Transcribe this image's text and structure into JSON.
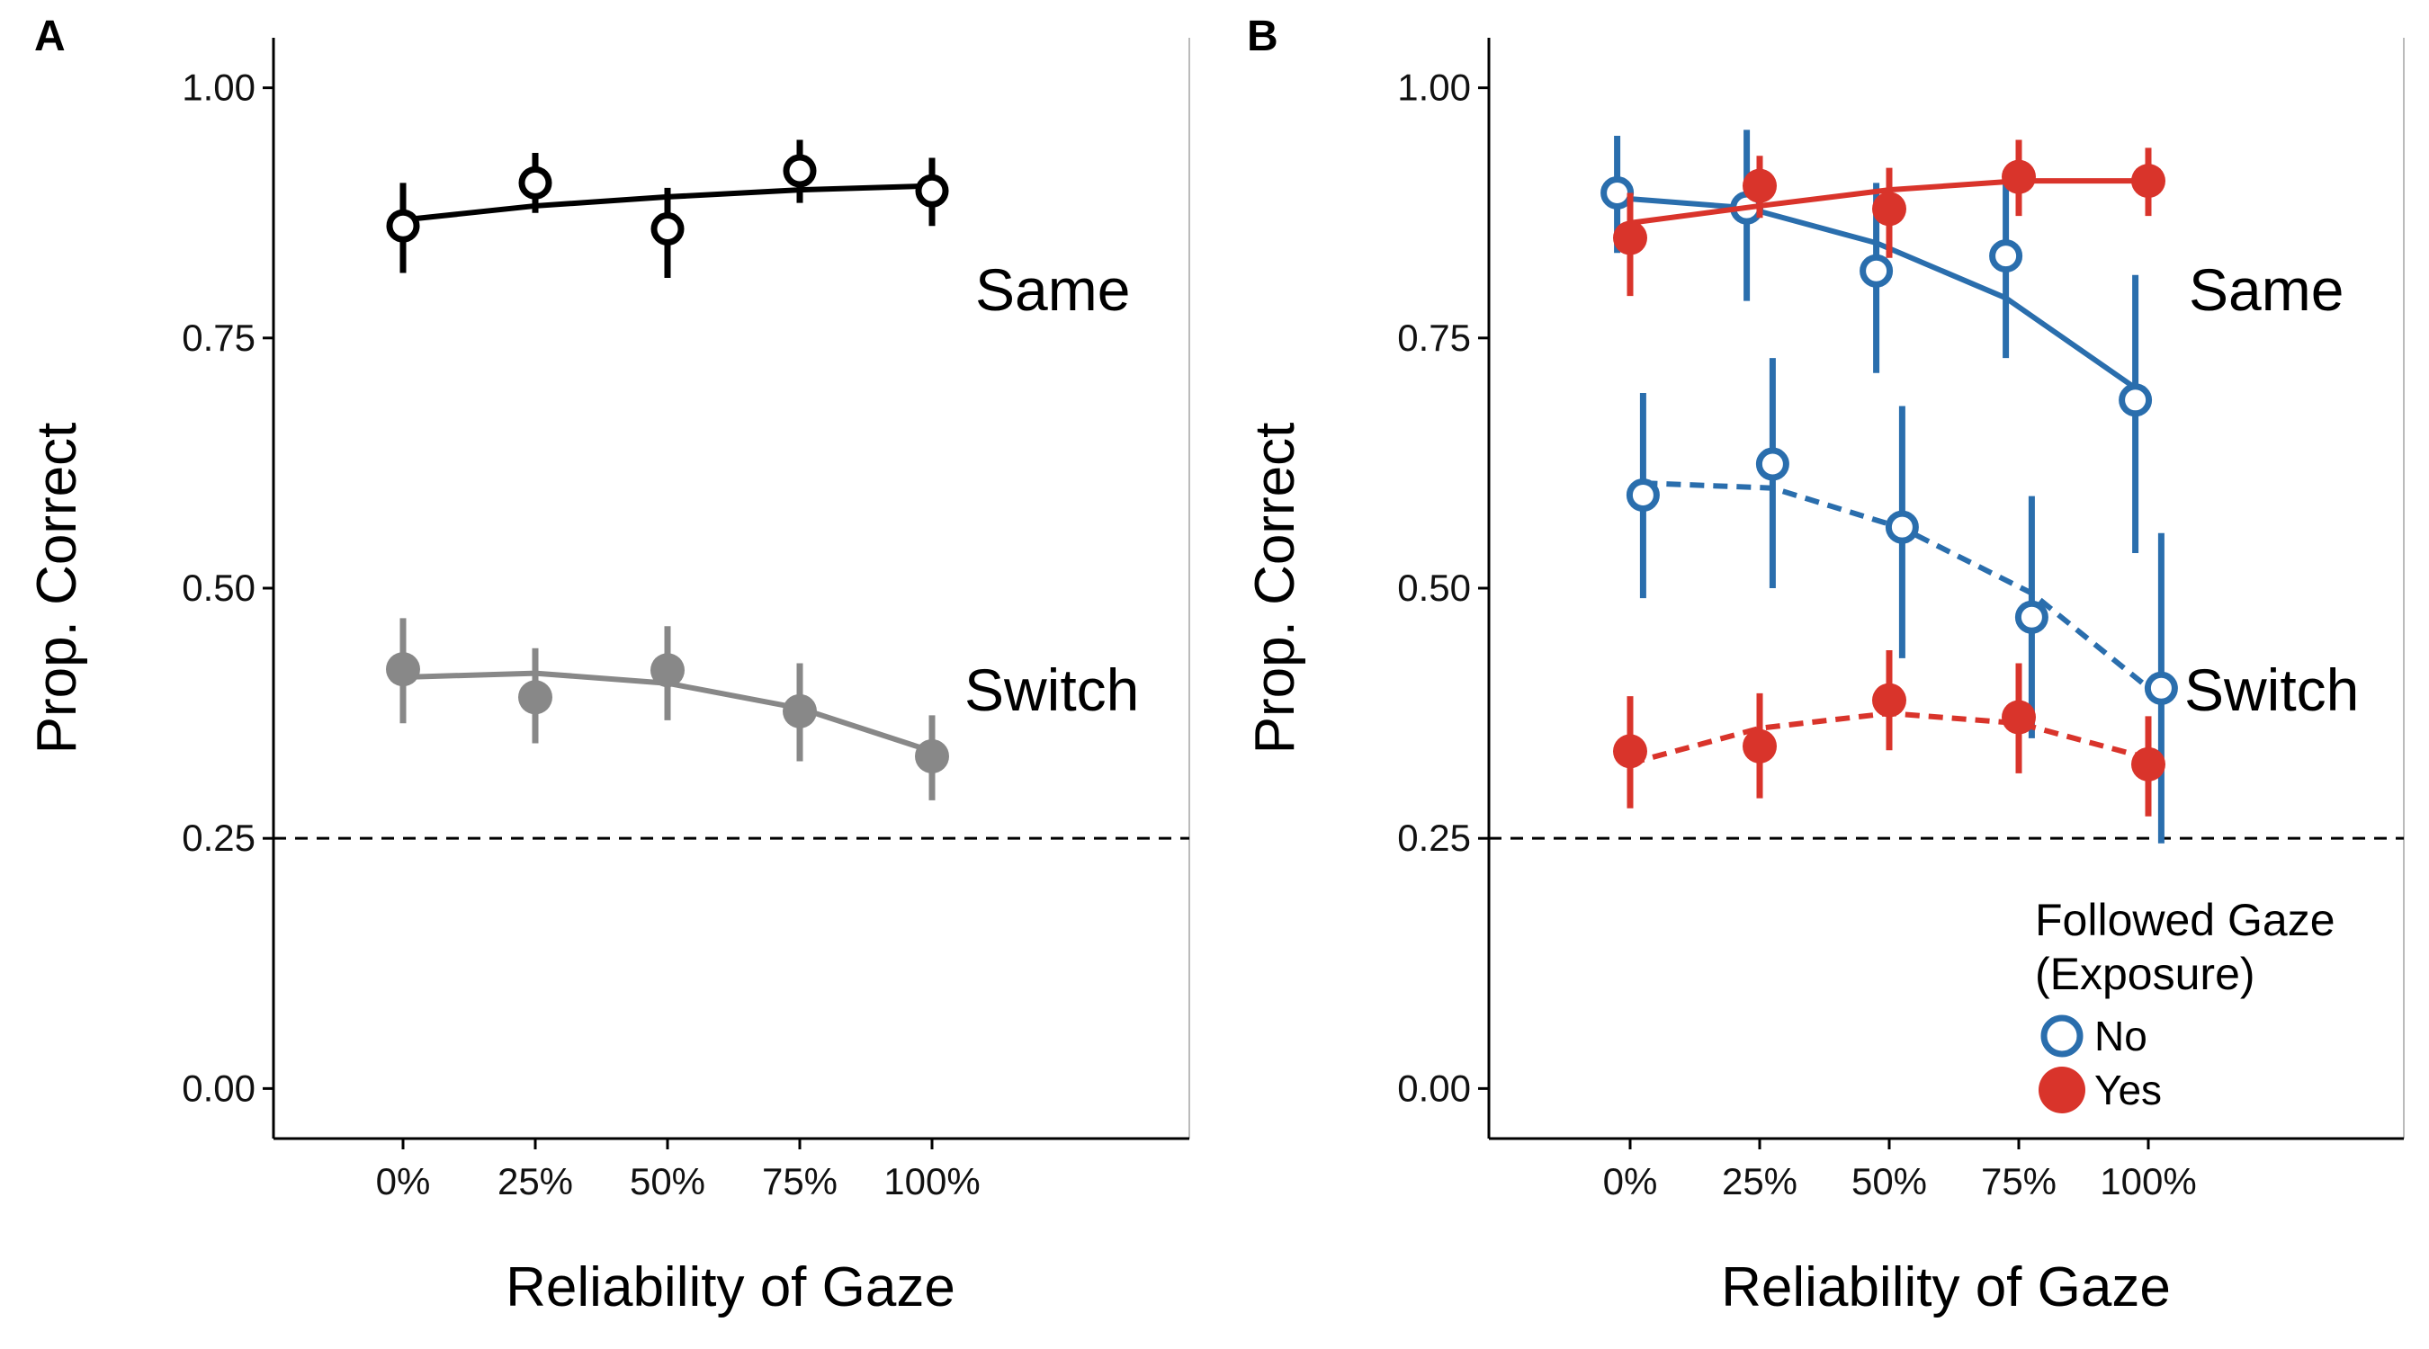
{
  "chart_data": [
    {
      "panel": "A",
      "type": "line",
      "xlabel": "Reliability of Gaze",
      "ylabel": "Prop. Correct",
      "x_categories": [
        "0%",
        "25%",
        "50%",
        "75%",
        "100%"
      ],
      "y_ticks": [
        "0.00",
        "0.25",
        "0.50",
        "0.75",
        "1.00"
      ],
      "ylim": [
        -0.05,
        1.05
      ],
      "chance_line": 0.25,
      "conditions": [
        {
          "label": "Same",
          "color": "#000000",
          "marker": "open",
          "line_style": "solid",
          "means": [
            0.862,
            0.905,
            0.859,
            0.917,
            0.897
          ],
          "ci_low": [
            0.815,
            0.875,
            0.81,
            0.885,
            0.862
          ],
          "ci_high": [
            0.905,
            0.935,
            0.9,
            0.948,
            0.93
          ],
          "fit": [
            0.868,
            0.882,
            0.891,
            0.898,
            0.902
          ]
        },
        {
          "label": "Switch",
          "color": "#888888",
          "marker": "filled",
          "line_style": "solid",
          "means": [
            0.419,
            0.391,
            0.418,
            0.377,
            0.332
          ],
          "ci_low": [
            0.365,
            0.345,
            0.368,
            0.327,
            0.288
          ],
          "ci_high": [
            0.47,
            0.44,
            0.462,
            0.425,
            0.373
          ],
          "fit": [
            0.411,
            0.415,
            0.405,
            0.38,
            0.337
          ]
        }
      ]
    },
    {
      "panel": "B",
      "type": "line",
      "xlabel": "Reliability of Gaze",
      "ylabel": "Prop. Correct",
      "x_categories": [
        "0%",
        "25%",
        "50%",
        "75%",
        "100%"
      ],
      "y_ticks": [
        "0.00",
        "0.25",
        "0.50",
        "0.75",
        "1.00"
      ],
      "ylim": [
        -0.05,
        1.05
      ],
      "chance_line": 0.25,
      "condition_labels": [
        "Same",
        "Switch"
      ],
      "legend": {
        "title_line1": "Followed Gaze",
        "title_line2": "(Exposure)",
        "items": [
          "No",
          "Yes"
        ],
        "placement": "bottom-right"
      },
      "series": [
        {
          "name": "No",
          "condition": "Same",
          "color": "#2a6ead",
          "marker": "open",
          "line_style": "solid",
          "dodge": -0.1,
          "means": [
            0.895,
            0.88,
            0.817,
            0.832,
            0.688
          ],
          "ci_low": [
            0.835,
            0.787,
            0.715,
            0.73,
            0.535
          ],
          "ci_high": [
            0.952,
            0.958,
            0.905,
            0.917,
            0.813
          ],
          "fit": [
            0.89,
            0.88,
            0.845,
            0.79,
            0.7
          ]
        },
        {
          "name": "Yes",
          "condition": "Same",
          "color": "#d9342b",
          "marker": "filled",
          "line_style": "solid",
          "dodge": 0.0,
          "means": [
            0.85,
            0.902,
            0.879,
            0.911,
            0.907
          ],
          "ci_low": [
            0.792,
            0.87,
            0.83,
            0.872,
            0.872
          ],
          "ci_high": [
            0.895,
            0.932,
            0.92,
            0.948,
            0.94
          ],
          "fit": [
            0.865,
            0.882,
            0.898,
            0.907,
            0.907
          ]
        },
        {
          "name": "No",
          "condition": "Switch",
          "color": "#2a6ead",
          "marker": "open",
          "line_style": "dashed",
          "dodge": 0.1,
          "means": [
            0.593,
            0.624,
            0.561,
            0.471,
            0.4
          ],
          "ci_low": [
            0.49,
            0.5,
            0.43,
            0.35,
            0.245
          ],
          "ci_high": [
            0.695,
            0.73,
            0.682,
            0.592,
            0.555
          ],
          "fit": [
            0.605,
            0.6,
            0.56,
            0.495,
            0.39
          ]
        },
        {
          "name": "Yes",
          "condition": "Switch",
          "color": "#d9342b",
          "marker": "filled",
          "line_style": "dashed",
          "dodge": 0.0,
          "means": [
            0.337,
            0.342,
            0.388,
            0.371,
            0.324
          ],
          "ci_low": [
            0.28,
            0.29,
            0.338,
            0.315,
            0.272
          ],
          "ci_high": [
            0.392,
            0.395,
            0.438,
            0.425,
            0.372
          ],
          "fit": [
            0.325,
            0.36,
            0.375,
            0.365,
            0.33
          ]
        }
      ]
    }
  ]
}
